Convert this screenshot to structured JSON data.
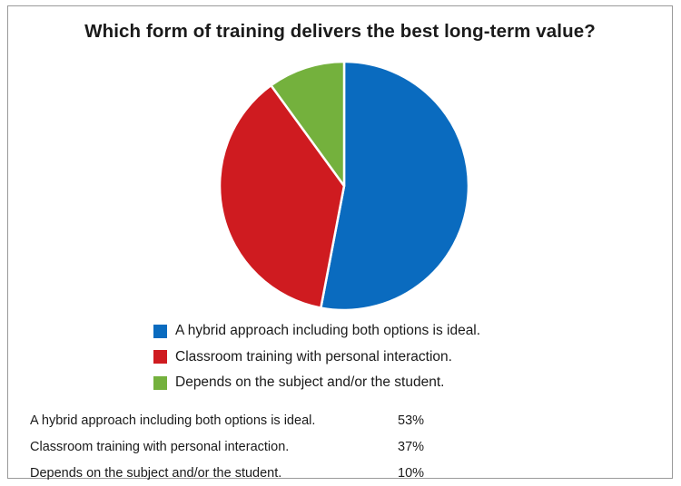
{
  "chart_data": {
    "type": "pie",
    "title": "Which form of training delivers the best long-term value?",
    "categories": [
      "A hybrid approach including both options is ideal.",
      "Classroom training with personal interaction.",
      "Depends on the subject and/or the student."
    ],
    "values": [
      53,
      37,
      10
    ],
    "colors": [
      "#0a6bbf",
      "#cf1b20",
      "#74b13d"
    ],
    "legend_position": "bottom"
  },
  "table": {
    "rows": [
      {
        "label": "A hybrid approach including both options is ideal.",
        "value": "53%"
      },
      {
        "label": "Classroom training with personal interaction.",
        "value": "37%"
      },
      {
        "label": "Depends on the subject and/or the student.",
        "value": "10%"
      }
    ]
  }
}
